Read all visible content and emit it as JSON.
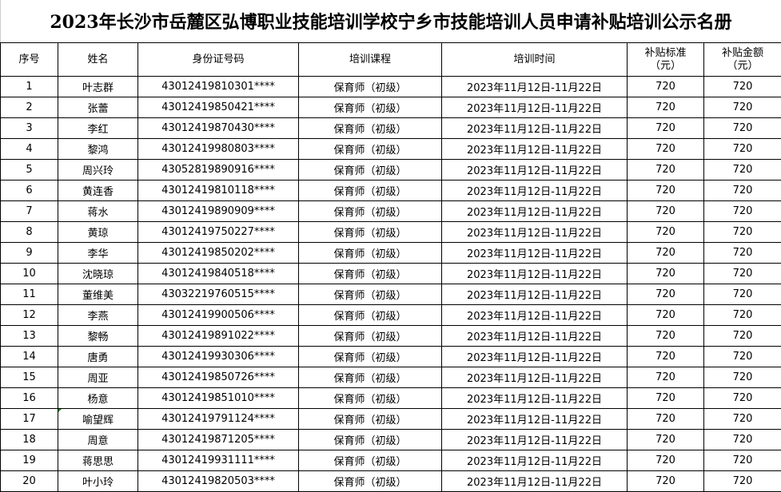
{
  "title": "2023年长沙市岳麓区弘博职业技能培训学校宁乡市技能培训人员申请补贴培训公示名册",
  "headers": [
    "序号",
    "姓名",
    "身份证号码",
    "培训课程",
    "培训时间",
    "补贴标准\n（元）",
    "补贴金额\n（元）"
  ],
  "rows": [
    [
      "1",
      "叶志群",
      "43012419810301****",
      "保育师（初级）",
      "2023年11月12日-11月22日",
      "720",
      "720"
    ],
    [
      "2",
      "张蕾",
      "43012419850421****",
      "保育师（初级）",
      "2023年11月12日-11月22日",
      "720",
      "720"
    ],
    [
      "3",
      "李红",
      "43012419870430****",
      "保育师（初级）",
      "2023年11月12日-11月22日",
      "720",
      "720"
    ],
    [
      "4",
      "黎鸿",
      "43012419980803****",
      "保育师（初级）",
      "2023年11月12日-11月22日",
      "720",
      "720"
    ],
    [
      "5",
      "周兴玲",
      "43052819890916****",
      "保育师（初级）",
      "2023年11月12日-11月22日",
      "720",
      "720"
    ],
    [
      "6",
      "黄连香",
      "43012419810118****",
      "保育师（初级）",
      "2023年11月12日-11月22日",
      "720",
      "720"
    ],
    [
      "7",
      "蒋水",
      "43012419890909****",
      "保育师（初级）",
      "2023年11月12日-11月22日",
      "720",
      "720"
    ],
    [
      "8",
      "黄琼",
      "43012419750227****",
      "保育师（初级）",
      "2023年11月12日-11月22日",
      "720",
      "720"
    ],
    [
      "9",
      "李华",
      "43012419850202****",
      "保育师（初级）",
      "2023年11月12日-11月22日",
      "720",
      "720"
    ],
    [
      "10",
      "沈晓琼",
      "43012419840518****",
      "保育师（初级）",
      "2023年11月12日-11月22日",
      "720",
      "720"
    ],
    [
      "11",
      "董维美",
      "43032219760515****",
      "保育师（初级）",
      "2023年11月12日-11月22日",
      "720",
      "720"
    ],
    [
      "12",
      "李燕",
      "43012419900506****",
      "保育师（初级）",
      "2023年11月12日-11月22日",
      "720",
      "720"
    ],
    [
      "13",
      "黎畅",
      "43012419891022****",
      "保育师（初级）",
      "2023年11月12日-11月22日",
      "720",
      "720"
    ],
    [
      "14",
      "唐勇",
      "43012419930306****",
      "保育师（初级）",
      "2023年11月12日-11月22日",
      "720",
      "720"
    ],
    [
      "15",
      "周亚",
      "43012419850726****",
      "保育师（初级）",
      "2023年11月12日-11月22日",
      "720",
      "720"
    ],
    [
      "16",
      "杨意",
      "43012419851010****",
      "保育师（初级）",
      "2023年11月12日-11月22日",
      "720",
      "720"
    ],
    [
      "17",
      "喻望辉",
      "43012419791124****",
      "保育师（初级）",
      "2023年11月12日-11月22日",
      "720",
      "720"
    ],
    [
      "18",
      "周意",
      "43012419871205****",
      "保育师（初级）",
      "2023年11月12日-11月22日",
      "720",
      "720"
    ],
    [
      "19",
      "蒋思思",
      "43012419931111****",
      "保育师（初级）",
      "2023年11月12日-11月22日",
      "720",
      "720"
    ],
    [
      "20",
      "叶小玲",
      "43012419820503****",
      "保育师（初级）",
      "2023年11月12日-11月22日",
      "720",
      "720"
    ]
  ]
}
